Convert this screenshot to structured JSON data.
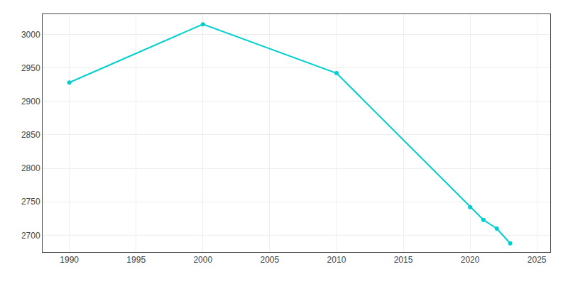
{
  "chart_data": {
    "type": "line",
    "x": [
      1990,
      2000,
      2010,
      2020,
      2021,
      2022,
      2023
    ],
    "values": [
      2928,
      3015,
      2942,
      2742,
      2723,
      2710,
      2688
    ],
    "color": "#00CED1",
    "marker": "circle",
    "xlim": [
      1988,
      2026
    ],
    "ylim": [
      2675,
      3030
    ],
    "xticks": [
      1990,
      1995,
      2000,
      2005,
      2010,
      2015,
      2020,
      2025
    ],
    "yticks": [
      2700,
      2750,
      2800,
      2850,
      2900,
      2950,
      3000
    ],
    "grid": true
  }
}
